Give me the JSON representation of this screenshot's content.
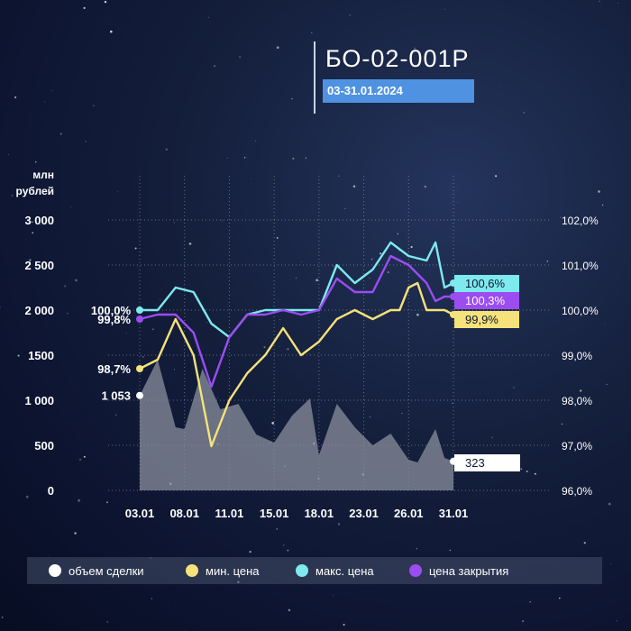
{
  "header": {
    "title": "БО-02-001Р",
    "subtitle": "03-31.01.2024"
  },
  "legend": {
    "items": [
      {
        "label": "объем сделки",
        "color": "#ffffff"
      },
      {
        "label": "мин. цена",
        "color": "#f5e27a"
      },
      {
        "label": "макс. цена",
        "color": "#7ee9ee"
      },
      {
        "label": "цена закрытия",
        "color": "#9b4df2"
      }
    ]
  },
  "chart_data": {
    "type": "line",
    "y_left_label": [
      "млн",
      "рублей"
    ],
    "y_left_ticks": [
      "3 000",
      "2 500",
      "2 000",
      "1500",
      "1 000",
      "500",
      "0"
    ],
    "y_left_range": [
      0,
      3000
    ],
    "y_right_ticks": [
      "102,0%",
      "101,0%",
      "100,0%",
      "99,0%",
      "98,0%",
      "97,0%",
      "96,0%"
    ],
    "y_right_range": [
      96,
      102
    ],
    "x_tick_labels": [
      "03.01",
      "08.01",
      "11.01",
      "15.01",
      "18.01",
      "23.01",
      "26.01",
      "31.01"
    ],
    "x_tick_index": [
      0,
      5,
      10,
      15,
      20,
      25,
      30,
      35
    ],
    "x_points": 36,
    "gridlines": true,
    "series": [
      {
        "name": "объем сделки",
        "axis": "left",
        "style": "area",
        "color": "#8a8f9c",
        "values": [
          1053,
          1450,
          700,
          680,
          1350,
          900,
          960,
          620,
          530,
          830,
          1020,
          390,
          960,
          700,
          500,
          630,
          340,
          310,
          680,
          360,
          323
        ],
        "x_index": [
          0,
          2,
          4,
          5,
          7,
          9,
          11,
          13,
          15,
          17,
          19,
          20,
          22,
          24,
          26,
          28,
          30,
          31,
          33,
          34,
          35
        ],
        "start_label": "1 053",
        "end_label": "323"
      },
      {
        "name": "мин. цена",
        "axis": "right",
        "color": "#f5e27a",
        "values": [
          98.7,
          98.9,
          99.8,
          99.0,
          96.98,
          98.0,
          98.6,
          99.0,
          99.6,
          99.0,
          99.3,
          99.8,
          100.0,
          99.8,
          100.0,
          100.0,
          100.5,
          100.6,
          100.0,
          100.0,
          99.9
        ],
        "x_index": [
          0,
          2,
          4,
          6,
          8,
          10,
          12,
          14,
          16,
          18,
          20,
          22,
          24,
          26,
          28,
          29,
          30,
          31,
          32,
          34,
          35
        ],
        "start_label": "98,7%",
        "end_label": "99,9%"
      },
      {
        "name": "макс. цена",
        "axis": "right",
        "color": "#7ee9ee",
        "values": [
          100.0,
          100.0,
          100.5,
          100.4,
          99.7,
          99.4,
          99.9,
          100.0,
          100.0,
          100.0,
          100.0,
          101.0,
          100.6,
          100.9,
          101.5,
          101.2,
          101.1,
          101.5,
          100.5,
          100.6
        ],
        "x_index": [
          0,
          2,
          4,
          6,
          8,
          10,
          12,
          14,
          16,
          18,
          20,
          22,
          24,
          26,
          28,
          30,
          32,
          33,
          34,
          35
        ],
        "start_label": "100,0%",
        "end_label": "100,6%"
      },
      {
        "name": "цена закрытия",
        "axis": "right",
        "color": "#9b4df2",
        "values": [
          99.8,
          99.9,
          99.9,
          99.5,
          98.3,
          99.4,
          99.9,
          99.9,
          100.0,
          99.9,
          100.0,
          100.7,
          100.4,
          100.4,
          101.2,
          101.0,
          100.6,
          100.2,
          100.3,
          100.3
        ],
        "x_index": [
          0,
          2,
          4,
          6,
          8,
          10,
          12,
          14,
          16,
          18,
          20,
          22,
          24,
          26,
          28,
          30,
          32,
          33,
          34,
          35
        ],
        "start_label": "99,8%",
        "end_label": "100,3%"
      }
    ]
  }
}
